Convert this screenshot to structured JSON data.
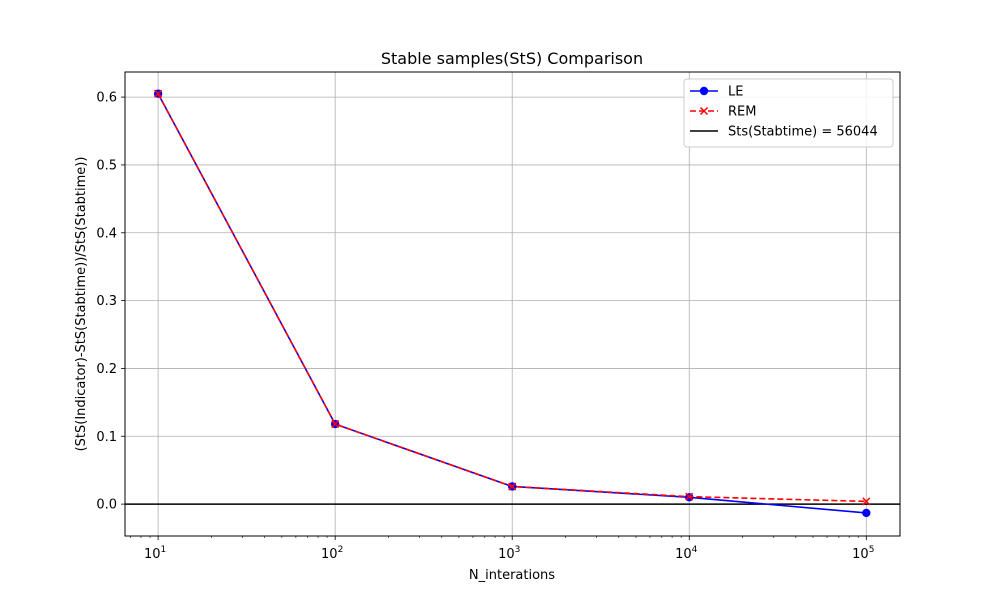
{
  "chart_data": {
    "type": "line",
    "title": "Stable samples(StS) Comparison",
    "xlabel": "N_interations",
    "ylabel": "(StS(Indicator)-StS(Stabtime))/StS(Stabtime))",
    "x_scale": "log",
    "xlim": [
      6.5,
      155000
    ],
    "ylim": [
      -0.047,
      0.637
    ],
    "x": [
      10,
      100,
      1000,
      10000,
      100000
    ],
    "x_ticks": [
      {
        "value": 10,
        "base": "10",
        "exp": "1"
      },
      {
        "value": 100,
        "base": "10",
        "exp": "2"
      },
      {
        "value": 1000,
        "base": "10",
        "exp": "3"
      },
      {
        "value": 10000,
        "base": "10",
        "exp": "4"
      },
      {
        "value": 100000,
        "base": "10",
        "exp": "5"
      }
    ],
    "y_ticks": [
      "0.0",
      "0.1",
      "0.2",
      "0.3",
      "0.4",
      "0.5",
      "0.6"
    ],
    "grid": true,
    "legend_position": "top-right",
    "series": [
      {
        "name": "LE",
        "values": [
          0.605,
          0.118,
          0.026,
          0.01,
          -0.013
        ],
        "color": "#0000ff",
        "style": "solid",
        "marker": "circle"
      },
      {
        "name": "REM",
        "values": [
          0.605,
          0.118,
          0.026,
          0.011,
          0.004
        ],
        "color": "#ff0000",
        "style": "dashed",
        "marker": "x"
      }
    ],
    "reference_line": {
      "name": "Sts(Stabtime) = 56044",
      "y": 0.0,
      "color": "#000000"
    }
  }
}
